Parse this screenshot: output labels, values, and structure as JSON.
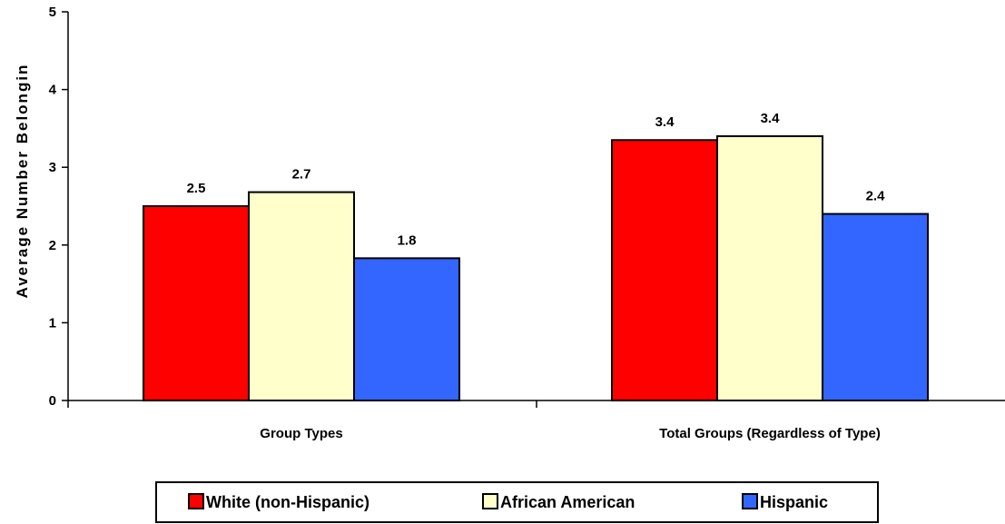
{
  "chart_data": {
    "type": "bar",
    "title": "",
    "xlabel": "",
    "ylabel": "Average Number Belongin",
    "ylim": [
      0,
      5
    ],
    "yticks": [
      "0",
      "1",
      "2",
      "3",
      "4",
      "5"
    ],
    "categories": [
      "Group Types",
      "Total Groups (Regardless of Type)"
    ],
    "series": [
      {
        "name": "White (non-Hispanic)",
        "color": "#ff0000",
        "values": [
          2.5,
          3.35
        ],
        "labels": [
          "2.5",
          "3.4"
        ]
      },
      {
        "name": "African American",
        "color": "#ffffcc",
        "values": [
          2.68,
          3.4
        ],
        "labels": [
          "2.7",
          "3.4"
        ]
      },
      {
        "name": "Hispanic",
        "color": "#3366ff",
        "values": [
          1.83,
          2.4
        ],
        "labels": [
          "1.8",
          "2.4"
        ]
      }
    ],
    "grid": false,
    "legend_position": "bottom"
  }
}
